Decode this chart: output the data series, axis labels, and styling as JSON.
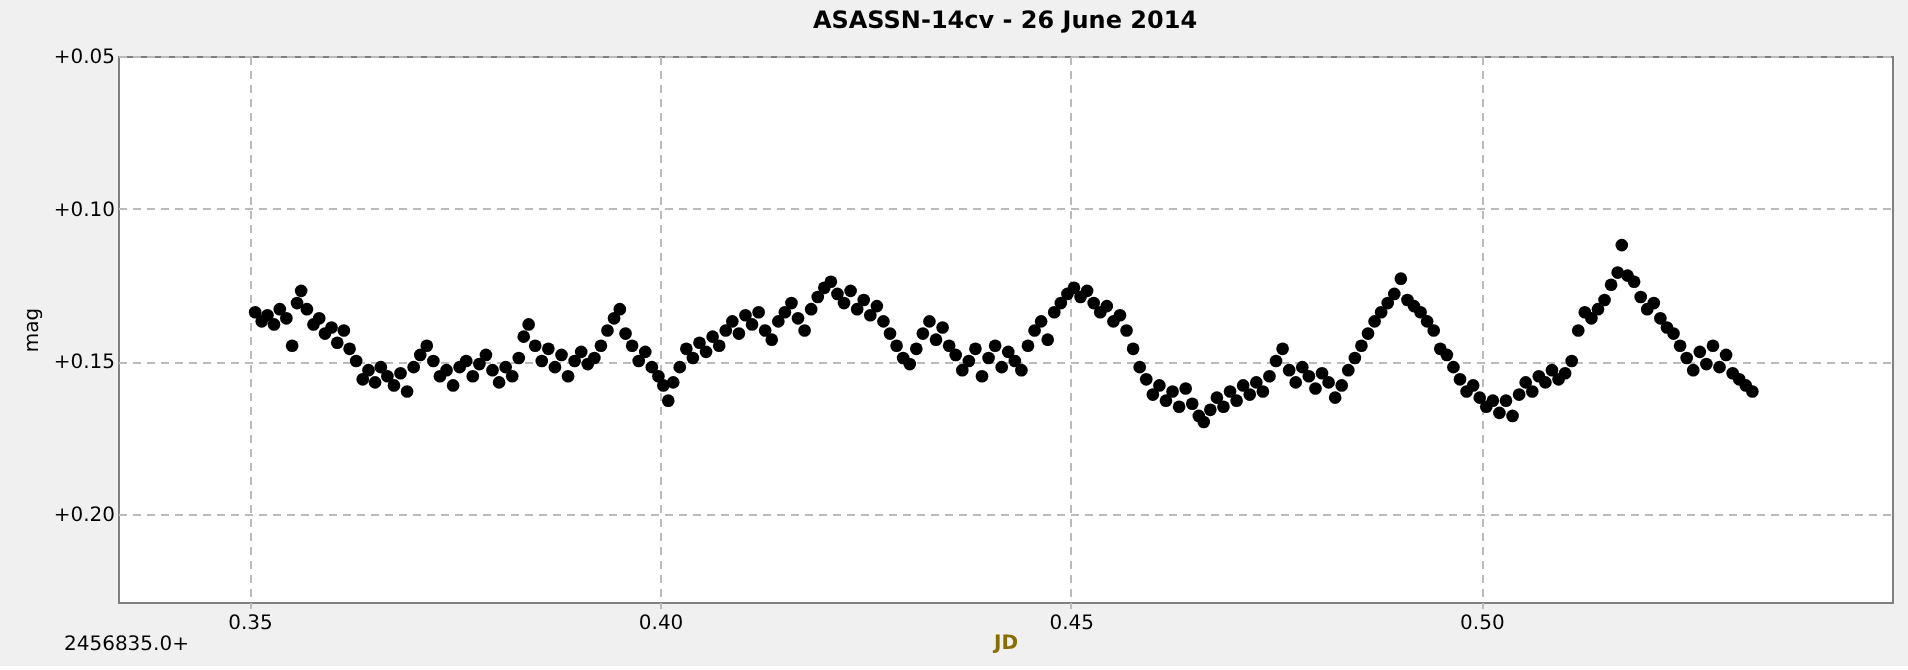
{
  "chart_data": {
    "type": "scatter",
    "title": "ASASSN-14cv - 26 June 2014",
    "xlabel": "JD",
    "ylabel": "mag",
    "annotations": [
      "2456835.0+"
    ],
    "xlim": [
      0.334,
      0.55
    ],
    "xticks": [
      {
        "value": 0.35,
        "label": "0.35"
      },
      {
        "value": 0.4,
        "label": "0.40"
      },
      {
        "value": 0.45,
        "label": "0.45"
      },
      {
        "value": 0.5,
        "label": "0.50"
      }
    ],
    "ylim": [
      0.229,
      0.05
    ],
    "yticks": [
      {
        "value": 0.05,
        "label": "+0.05"
      },
      {
        "value": 0.1,
        "label": "+0.10"
      },
      {
        "value": 0.15,
        "label": "+0.15"
      },
      {
        "value": 0.2,
        "label": "+0.20"
      }
    ],
    "grid": true,
    "marker": "circle",
    "series": [
      {
        "color": "#000000",
        "x": [
          0.3507,
          0.3515,
          0.3522,
          0.353,
          0.3537,
          0.3545,
          0.3552,
          0.3558,
          0.3563,
          0.357,
          0.3578,
          0.3585,
          0.3592,
          0.36,
          0.3607,
          0.3615,
          0.3622,
          0.363,
          0.3638,
          0.3645,
          0.3653,
          0.366,
          0.3668,
          0.3676,
          0.3684,
          0.3692,
          0.37,
          0.3708,
          0.3716,
          0.3724,
          0.3732,
          0.374,
          0.3748,
          0.3756,
          0.3764,
          0.3772,
          0.378,
          0.3788,
          0.3796,
          0.3804,
          0.3812,
          0.382,
          0.3828,
          0.3834,
          0.384,
          0.3848,
          0.3856,
          0.3864,
          0.3872,
          0.388,
          0.3888,
          0.3896,
          0.3904,
          0.3912,
          0.392,
          0.3928,
          0.3936,
          0.3944,
          0.3951,
          0.3958,
          0.3966,
          0.3974,
          0.3982,
          0.399,
          0.3998,
          0.4004,
          0.401,
          0.4016,
          0.4024,
          0.4032,
          0.404,
          0.4048,
          0.4056,
          0.4064,
          0.4072,
          0.408,
          0.4088,
          0.4096,
          0.4104,
          0.4112,
          0.412,
          0.4128,
          0.4136,
          0.4144,
          0.4152,
          0.416,
          0.4168,
          0.4176,
          0.4184,
          0.4192,
          0.42,
          0.4208,
          0.4216,
          0.4224,
          0.4232,
          0.424,
          0.4248,
          0.4256,
          0.4264,
          0.4272,
          0.428,
          0.4288,
          0.4296,
          0.4304,
          0.4312,
          0.432,
          0.4328,
          0.4336,
          0.4344,
          0.4352,
          0.436,
          0.4368,
          0.4376,
          0.4384,
          0.4392,
          0.44,
          0.4408,
          0.4416,
          0.4424,
          0.4432,
          0.444,
          0.4448,
          0.4456,
          0.4464,
          0.4472,
          0.448,
          0.4488,
          0.4496,
          0.4504,
          0.4512,
          0.452,
          0.4528,
          0.4536,
          0.4544,
          0.4552,
          0.456,
          0.4568,
          0.4576,
          0.4584,
          0.4592,
          0.46,
          0.4608,
          0.4616,
          0.4624,
          0.4632,
          0.464,
          0.4648,
          0.4656,
          0.4662,
          0.467,
          0.4678,
          0.4686,
          0.4694,
          0.4702,
          0.471,
          0.4718,
          0.4726,
          0.4734,
          0.4742,
          0.475,
          0.4758,
          0.4766,
          0.4774,
          0.4782,
          0.479,
          0.4798,
          0.4806,
          0.4814,
          0.4822,
          0.483,
          0.4838,
          0.4846,
          0.4854,
          0.4862,
          0.487,
          0.4878,
          0.4886,
          0.4894,
          0.4902,
          0.491,
          0.4918,
          0.4926,
          0.4934,
          0.4942,
          0.495,
          0.4958,
          0.4966,
          0.4974,
          0.4982,
          0.499,
          0.4998,
          0.5006,
          0.5014,
          0.5022,
          0.503,
          0.5038,
          0.5046,
          0.5054,
          0.5062,
          0.507,
          0.5078,
          0.5086,
          0.5094,
          0.5102,
          0.511,
          0.5118,
          0.5126,
          0.5134,
          0.5142,
          0.515,
          0.5158,
          0.5166,
          0.5171,
          0.5178,
          0.5186,
          0.5194,
          0.5202,
          0.521,
          0.5218,
          0.5226,
          0.5234,
          0.5242,
          0.525,
          0.5258,
          0.5266,
          0.5274,
          0.5282,
          0.529,
          0.5298,
          0.5306,
          0.5314,
          0.5322,
          0.533
        ],
        "values": [
          0.134,
          0.137,
          0.135,
          0.138,
          0.133,
          0.136,
          0.145,
          0.131,
          0.127,
          0.133,
          0.138,
          0.136,
          0.141,
          0.139,
          0.144,
          0.14,
          0.146,
          0.15,
          0.156,
          0.153,
          0.157,
          0.152,
          0.155,
          0.158,
          0.154,
          0.16,
          0.152,
          0.148,
          0.145,
          0.15,
          0.155,
          0.153,
          0.158,
          0.152,
          0.15,
          0.155,
          0.151,
          0.148,
          0.153,
          0.157,
          0.152,
          0.155,
          0.149,
          0.142,
          0.138,
          0.145,
          0.15,
          0.146,
          0.152,
          0.148,
          0.155,
          0.15,
          0.147,
          0.151,
          0.149,
          0.145,
          0.14,
          0.136,
          0.133,
          0.141,
          0.145,
          0.15,
          0.147,
          0.152,
          0.155,
          0.158,
          0.163,
          0.157,
          0.152,
          0.146,
          0.149,
          0.144,
          0.147,
          0.142,
          0.145,
          0.14,
          0.137,
          0.141,
          0.135,
          0.138,
          0.134,
          0.14,
          0.143,
          0.137,
          0.134,
          0.131,
          0.136,
          0.14,
          0.133,
          0.129,
          0.126,
          0.124,
          0.128,
          0.131,
          0.127,
          0.133,
          0.13,
          0.135,
          0.132,
          0.137,
          0.141,
          0.145,
          0.149,
          0.151,
          0.146,
          0.141,
          0.137,
          0.143,
          0.139,
          0.145,
          0.148,
          0.153,
          0.15,
          0.146,
          0.155,
          0.149,
          0.145,
          0.152,
          0.147,
          0.15,
          0.153,
          0.145,
          0.14,
          0.137,
          0.143,
          0.134,
          0.131,
          0.128,
          0.126,
          0.129,
          0.127,
          0.131,
          0.134,
          0.132,
          0.137,
          0.135,
          0.14,
          0.146,
          0.152,
          0.156,
          0.161,
          0.158,
          0.163,
          0.16,
          0.165,
          0.159,
          0.164,
          0.168,
          0.17,
          0.166,
          0.162,
          0.165,
          0.16,
          0.163,
          0.158,
          0.161,
          0.157,
          0.16,
          0.155,
          0.15,
          0.146,
          0.153,
          0.157,
          0.152,
          0.155,
          0.159,
          0.154,
          0.157,
          0.162,
          0.158,
          0.153,
          0.149,
          0.145,
          0.141,
          0.137,
          0.134,
          0.131,
          0.128,
          0.123,
          0.13,
          0.132,
          0.134,
          0.137,
          0.14,
          0.146,
          0.148,
          0.152,
          0.156,
          0.16,
          0.158,
          0.162,
          0.165,
          0.163,
          0.167,
          0.163,
          0.168,
          0.161,
          0.157,
          0.16,
          0.155,
          0.157,
          0.153,
          0.156,
          0.154,
          0.15,
          0.14,
          0.134,
          0.136,
          0.133,
          0.13,
          0.125,
          0.121,
          0.112,
          0.122,
          0.124,
          0.129,
          0.133,
          0.131,
          0.136,
          0.139,
          0.141,
          0.145,
          0.149,
          0.153,
          0.147,
          0.151,
          0.145,
          0.152,
          0.148,
          0.154,
          0.156,
          0.158,
          0.16
        ]
      }
    ]
  }
}
